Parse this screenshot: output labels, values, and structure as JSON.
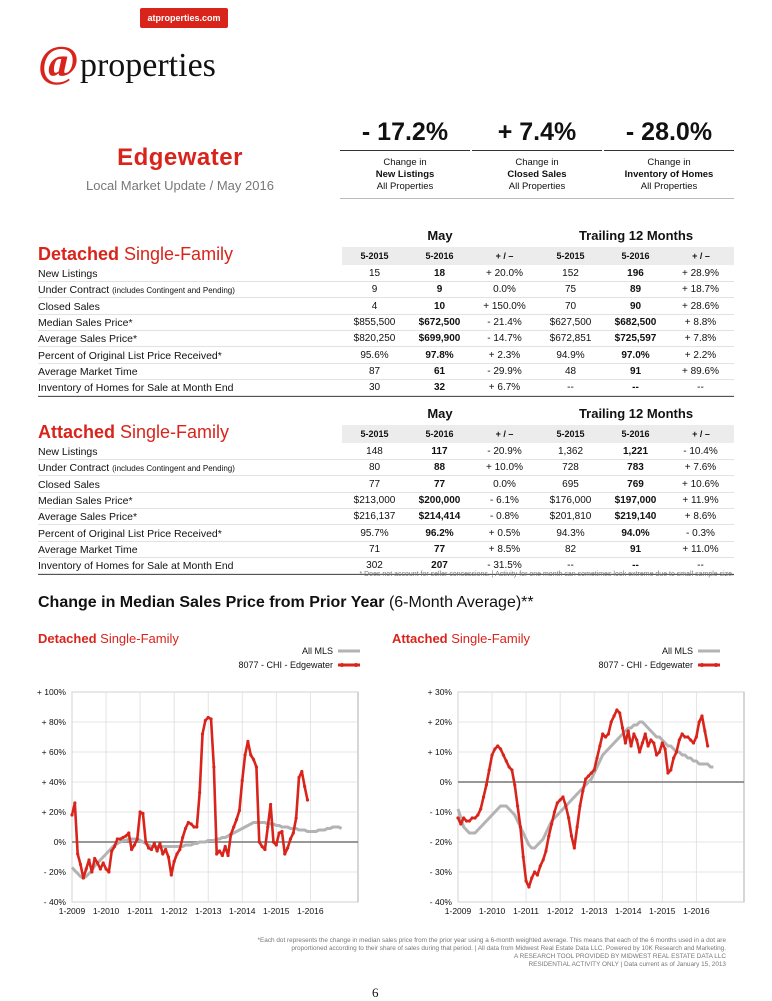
{
  "header": {
    "url": "atproperties.com",
    "logo_at": "@",
    "logo_word": "properties"
  },
  "area": {
    "name": "Edgewater",
    "subtitle": "Local Market Update / May 2016"
  },
  "stats": [
    {
      "value": "- 17.2%",
      "line1": "Change in",
      "line2": "New Listings",
      "line3": "All Properties"
    },
    {
      "value": "+ 7.4%",
      "line1": "Change in",
      "line2": "Closed Sales",
      "line3": "All Properties"
    },
    {
      "value": "- 28.0%",
      "line1": "Change in",
      "line2": "Inventory of Homes",
      "line3": "All Properties"
    }
  ],
  "table_headers": {
    "month": "May",
    "trailing": "Trailing 12 Months",
    "cols": [
      "5-2015",
      "5-2016",
      "+ / –",
      "5-2015",
      "5-2016",
      "+ / –"
    ]
  },
  "detached": {
    "title_bold": "Detached",
    "title_rest": " Single-Family",
    "rows": [
      {
        "label": "New Listings",
        "small": "",
        "v": [
          "15",
          "18",
          "+ 20.0%",
          "152",
          "196",
          "+ 28.9%"
        ]
      },
      {
        "label": "Under Contract ",
        "small": "(includes Contingent and Pending)",
        "v": [
          "9",
          "9",
          "0.0%",
          "75",
          "89",
          "+ 18.7%"
        ]
      },
      {
        "label": "Closed Sales",
        "small": "",
        "v": [
          "4",
          "10",
          "+ 150.0%",
          "70",
          "90",
          "+ 28.6%"
        ]
      },
      {
        "label": "Median Sales Price*",
        "small": "",
        "v": [
          "$855,500",
          "$672,500",
          "- 21.4%",
          "$627,500",
          "$682,500",
          "+ 8.8%"
        ]
      },
      {
        "label": "Average Sales Price*",
        "small": "",
        "v": [
          "$820,250",
          "$699,900",
          "- 14.7%",
          "$672,851",
          "$725,597",
          "+ 7.8%"
        ]
      },
      {
        "label": "Percent of Original List Price Received*",
        "small": "",
        "v": [
          "95.6%",
          "97.8%",
          "+ 2.3%",
          "94.9%",
          "97.0%",
          "+ 2.2%"
        ]
      },
      {
        "label": "Average Market Time",
        "small": "",
        "v": [
          "87",
          "61",
          "- 29.9%",
          "48",
          "91",
          "+ 89.6%"
        ]
      },
      {
        "label": "Inventory of Homes for Sale at Month End",
        "small": "",
        "v": [
          "30",
          "32",
          "+ 6.7%",
          "--",
          "--",
          "--"
        ]
      }
    ]
  },
  "attached": {
    "title_bold": "Attached",
    "title_rest": " Single-Family",
    "rows": [
      {
        "label": "New Listings",
        "small": "",
        "v": [
          "148",
          "117",
          "- 20.9%",
          "1,362",
          "1,221",
          "- 10.4%"
        ]
      },
      {
        "label": "Under Contract ",
        "small": "(includes Contingent and Pending)",
        "v": [
          "80",
          "88",
          "+ 10.0%",
          "728",
          "783",
          "+ 7.6%"
        ]
      },
      {
        "label": "Closed Sales",
        "small": "",
        "v": [
          "77",
          "77",
          "0.0%",
          "695",
          "769",
          "+ 10.6%"
        ]
      },
      {
        "label": "Median Sales Price*",
        "small": "",
        "v": [
          "$213,000",
          "$200,000",
          "- 6.1%",
          "$176,000",
          "$197,000",
          "+ 11.9%"
        ]
      },
      {
        "label": "Average Sales Price*",
        "small": "",
        "v": [
          "$216,137",
          "$214,414",
          "- 0.8%",
          "$201,810",
          "$219,140",
          "+ 8.6%"
        ]
      },
      {
        "label": "Percent of Original List Price Received*",
        "small": "",
        "v": [
          "95.7%",
          "96.2%",
          "+ 0.5%",
          "94.3%",
          "94.0%",
          "- 0.3%"
        ]
      },
      {
        "label": "Average Market Time",
        "small": "",
        "v": [
          "71",
          "77",
          "+ 8.5%",
          "82",
          "91",
          "+ 11.0%"
        ]
      },
      {
        "label": "Inventory of Homes for Sale at Month End",
        "small": "",
        "v": [
          "302",
          "207",
          "- 31.5%",
          "--",
          "--",
          "--"
        ]
      }
    ]
  },
  "footnote1": "* Does not account for seller concessions.  |  Activity for one month can sometimes look extreme due to small sample size.",
  "chart_section": {
    "title": "Change in Median Sales Price from Prior Year",
    "title_suffix": " (6-Month Average)**"
  },
  "colors": {
    "red": "#d9241c",
    "gray": "#b3b3b3",
    "zero_line": "#777777"
  },
  "chart_data": [
    {
      "type": "line",
      "title_bold": "Detached",
      "title_rest": " Single-Family",
      "x_ticks": [
        "1-2009",
        "1-2010",
        "1-2011",
        "1-2012",
        "1-2013",
        "1-2014",
        "1-2015",
        "1-2016"
      ],
      "y_ticks": [
        "+ 100%",
        "+ 80%",
        "+ 60%",
        "+ 40%",
        "+ 20%",
        "0%",
        "- 20%",
        "- 40%"
      ],
      "ylim": [
        -40,
        100
      ],
      "x_start": "2009-01",
      "series": [
        {
          "name": "All MLS",
          "color": "#b3b3b3",
          "values": [
            -17,
            -19,
            -21,
            -23,
            -24,
            -23,
            -21,
            -19,
            -16,
            -14,
            -12,
            -10,
            -8,
            -6,
            -4,
            -2,
            -1,
            0,
            1,
            1,
            2,
            2,
            2,
            2,
            1,
            0,
            -1,
            -2,
            -3,
            -3,
            -3,
            -3,
            -3,
            -3,
            -3,
            -3,
            -3,
            -3,
            -3,
            -3,
            -2,
            -2,
            -2,
            -1,
            -1,
            0,
            0,
            0,
            1,
            1,
            1,
            2,
            2,
            3,
            3,
            4,
            5,
            6,
            7,
            8,
            9,
            10,
            11,
            12,
            13,
            13,
            13,
            13,
            13,
            12,
            12,
            12,
            11,
            11,
            10,
            10,
            10,
            9,
            9,
            9,
            8,
            8,
            8,
            7,
            7,
            7,
            7,
            8,
            8,
            8,
            9,
            9,
            10,
            10,
            10,
            9
          ]
        },
        {
          "name": "8077 - CHI - Edgewater",
          "color": "#d9241c",
          "values": [
            18,
            26,
            -8,
            -15,
            -24,
            -18,
            -12,
            -20,
            -11,
            -14,
            -18,
            -14,
            -18,
            -20,
            -6,
            -3,
            2,
            2,
            3,
            4,
            6,
            -5,
            -2,
            2,
            20,
            19,
            0,
            -4,
            -5,
            -1,
            -6,
            -1,
            -8,
            -5,
            -10,
            -22,
            -13,
            -8,
            -5,
            3,
            9,
            13,
            12,
            10,
            10,
            33,
            72,
            81,
            83,
            82,
            50,
            -8,
            -6,
            -9,
            -3,
            -9,
            5,
            10,
            15,
            21,
            41,
            58,
            67,
            58,
            55,
            50,
            0,
            -3,
            -5,
            10,
            25,
            0,
            -2,
            6,
            7,
            -8,
            -4,
            2,
            6,
            16,
            43,
            47,
            37,
            28
          ]
        }
      ]
    },
    {
      "type": "line",
      "title_bold": "Attached",
      "title_rest": " Single-Family",
      "x_ticks": [
        "1-2009",
        "1-2010",
        "1-2011",
        "1-2012",
        "1-2013",
        "1-2014",
        "1-2015",
        "1-2016"
      ],
      "y_ticks": [
        "+ 30%",
        "+ 20%",
        "+ 10%",
        "0%",
        "- 10%",
        "- 20%",
        "- 30%",
        "- 40%"
      ],
      "ylim": [
        -40,
        30
      ],
      "x_start": "2009-01",
      "series": [
        {
          "name": "All MLS",
          "color": "#b3b3b3",
          "values": [
            -9,
            -12,
            -15,
            -16,
            -17,
            -17,
            -17,
            -16,
            -15,
            -14,
            -13,
            -12,
            -11,
            -10,
            -9,
            -8,
            -8,
            -8,
            -9,
            -10,
            -11,
            -13,
            -15,
            -17,
            -19,
            -21,
            -22,
            -22,
            -21,
            -20,
            -19,
            -17,
            -15,
            -13,
            -12,
            -11,
            -10,
            -9,
            -8,
            -7,
            -6,
            -5,
            -4,
            -3,
            -2,
            -1,
            0,
            1,
            3,
            5,
            7,
            9,
            10,
            11,
            12,
            13,
            14,
            15,
            16,
            17,
            18,
            18,
            19,
            19,
            20,
            20,
            19,
            18,
            17,
            16,
            15,
            15,
            14,
            13,
            12,
            12,
            11,
            10,
            10,
            9,
            9,
            8,
            8,
            7,
            7,
            6,
            6,
            6,
            6,
            5,
            5
          ]
        },
        {
          "name": "8077 - CHI - Edgewater",
          "color": "#d9241c",
          "values": [
            -12,
            -14,
            -12,
            -13,
            -13,
            -12,
            -12,
            -11,
            -9,
            -5,
            -1,
            4,
            9,
            11,
            12,
            11,
            9,
            7,
            5,
            4,
            -1,
            -8,
            -15,
            -25,
            -33,
            -35,
            -32,
            -30,
            -31,
            -28,
            -26,
            -23,
            -18,
            -14,
            -10,
            -7,
            -6,
            -5,
            -8,
            -12,
            -18,
            -22,
            -15,
            -8,
            -3,
            1,
            2,
            3,
            4,
            8,
            12,
            16,
            15,
            16,
            20,
            22,
            24,
            23,
            18,
            13,
            17,
            12,
            16,
            14,
            10,
            13,
            16,
            12,
            14,
            13,
            9,
            10,
            13,
            11,
            3,
            4,
            8,
            10,
            14,
            16,
            15,
            15,
            14,
            13,
            15,
            20,
            22,
            17,
            12
          ]
        }
      ]
    }
  ],
  "footnote2": [
    "*Each dot represents the change in median sales price from the prior year using a 6-month weighted average. This means that each of the 6 months used in a dot are",
    "proportioned according to their share of sales during that period.  |  All data from Midwest Real Estate Data LLC. Powered by 10K Research and Marketing.",
    "A RESEARCH TOOL PROVIDED BY MIDWEST REAL ESTATE DATA LLC",
    "RESIDENTIAL ACTIVITY ONLY  |  Data current as of January 15, 2013"
  ],
  "page_number": "6"
}
